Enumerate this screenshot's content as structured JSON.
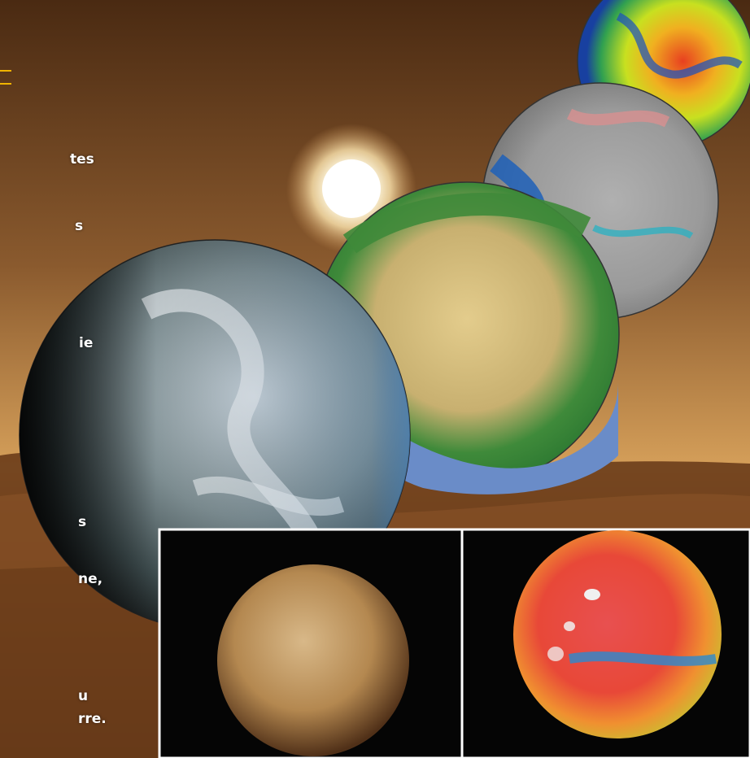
{
  "text_fragments": [
    "tes",
    "s",
    "ie",
    "s",
    "ne,",
    "u",
    "rre."
  ],
  "colors": {
    "sky_top": "#8a5a2e",
    "sky_horizon": "#d9a25a",
    "dunes": "#7a4a22",
    "accent_rule": "#f0b400",
    "inset_border": "#ffffff"
  },
  "globes": [
    {
      "name": "earth-cloud-cover",
      "colormap": "natural"
    },
    {
      "name": "earth-land-cover",
      "colormap": "vegetation"
    },
    {
      "name": "earth-temperature",
      "colormap": "grey-blue-pink"
    },
    {
      "name": "earth-heatmap",
      "colormap": "rainbow"
    },
    {
      "name": "mars-natural",
      "colormap": "natural"
    },
    {
      "name": "mars-heatmap",
      "colormap": "rainbow"
    }
  ]
}
